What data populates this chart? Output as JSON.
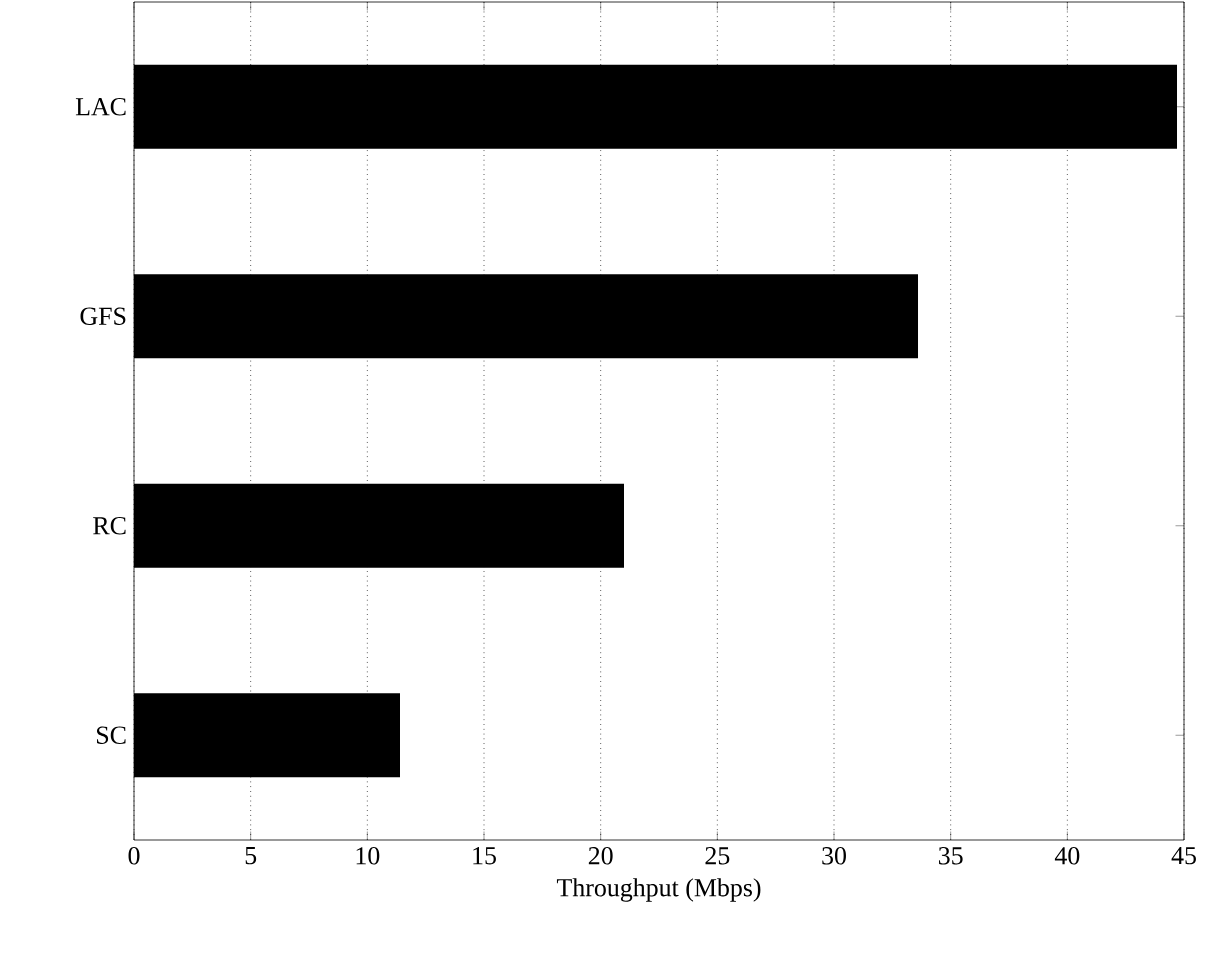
{
  "chart_data": {
    "type": "bar",
    "orientation": "horizontal",
    "xlabel": "Throughput (Mbps)",
    "categories": [
      "LAC",
      "GFS",
      "RC",
      "SC"
    ],
    "values": [
      44.7,
      33.6,
      21.0,
      11.4
    ],
    "color": "#000000",
    "xlim": [
      0,
      45
    ],
    "xticks": [
      0,
      5,
      10,
      15,
      20,
      25,
      30,
      35,
      40,
      45
    ],
    "grid": "x"
  }
}
